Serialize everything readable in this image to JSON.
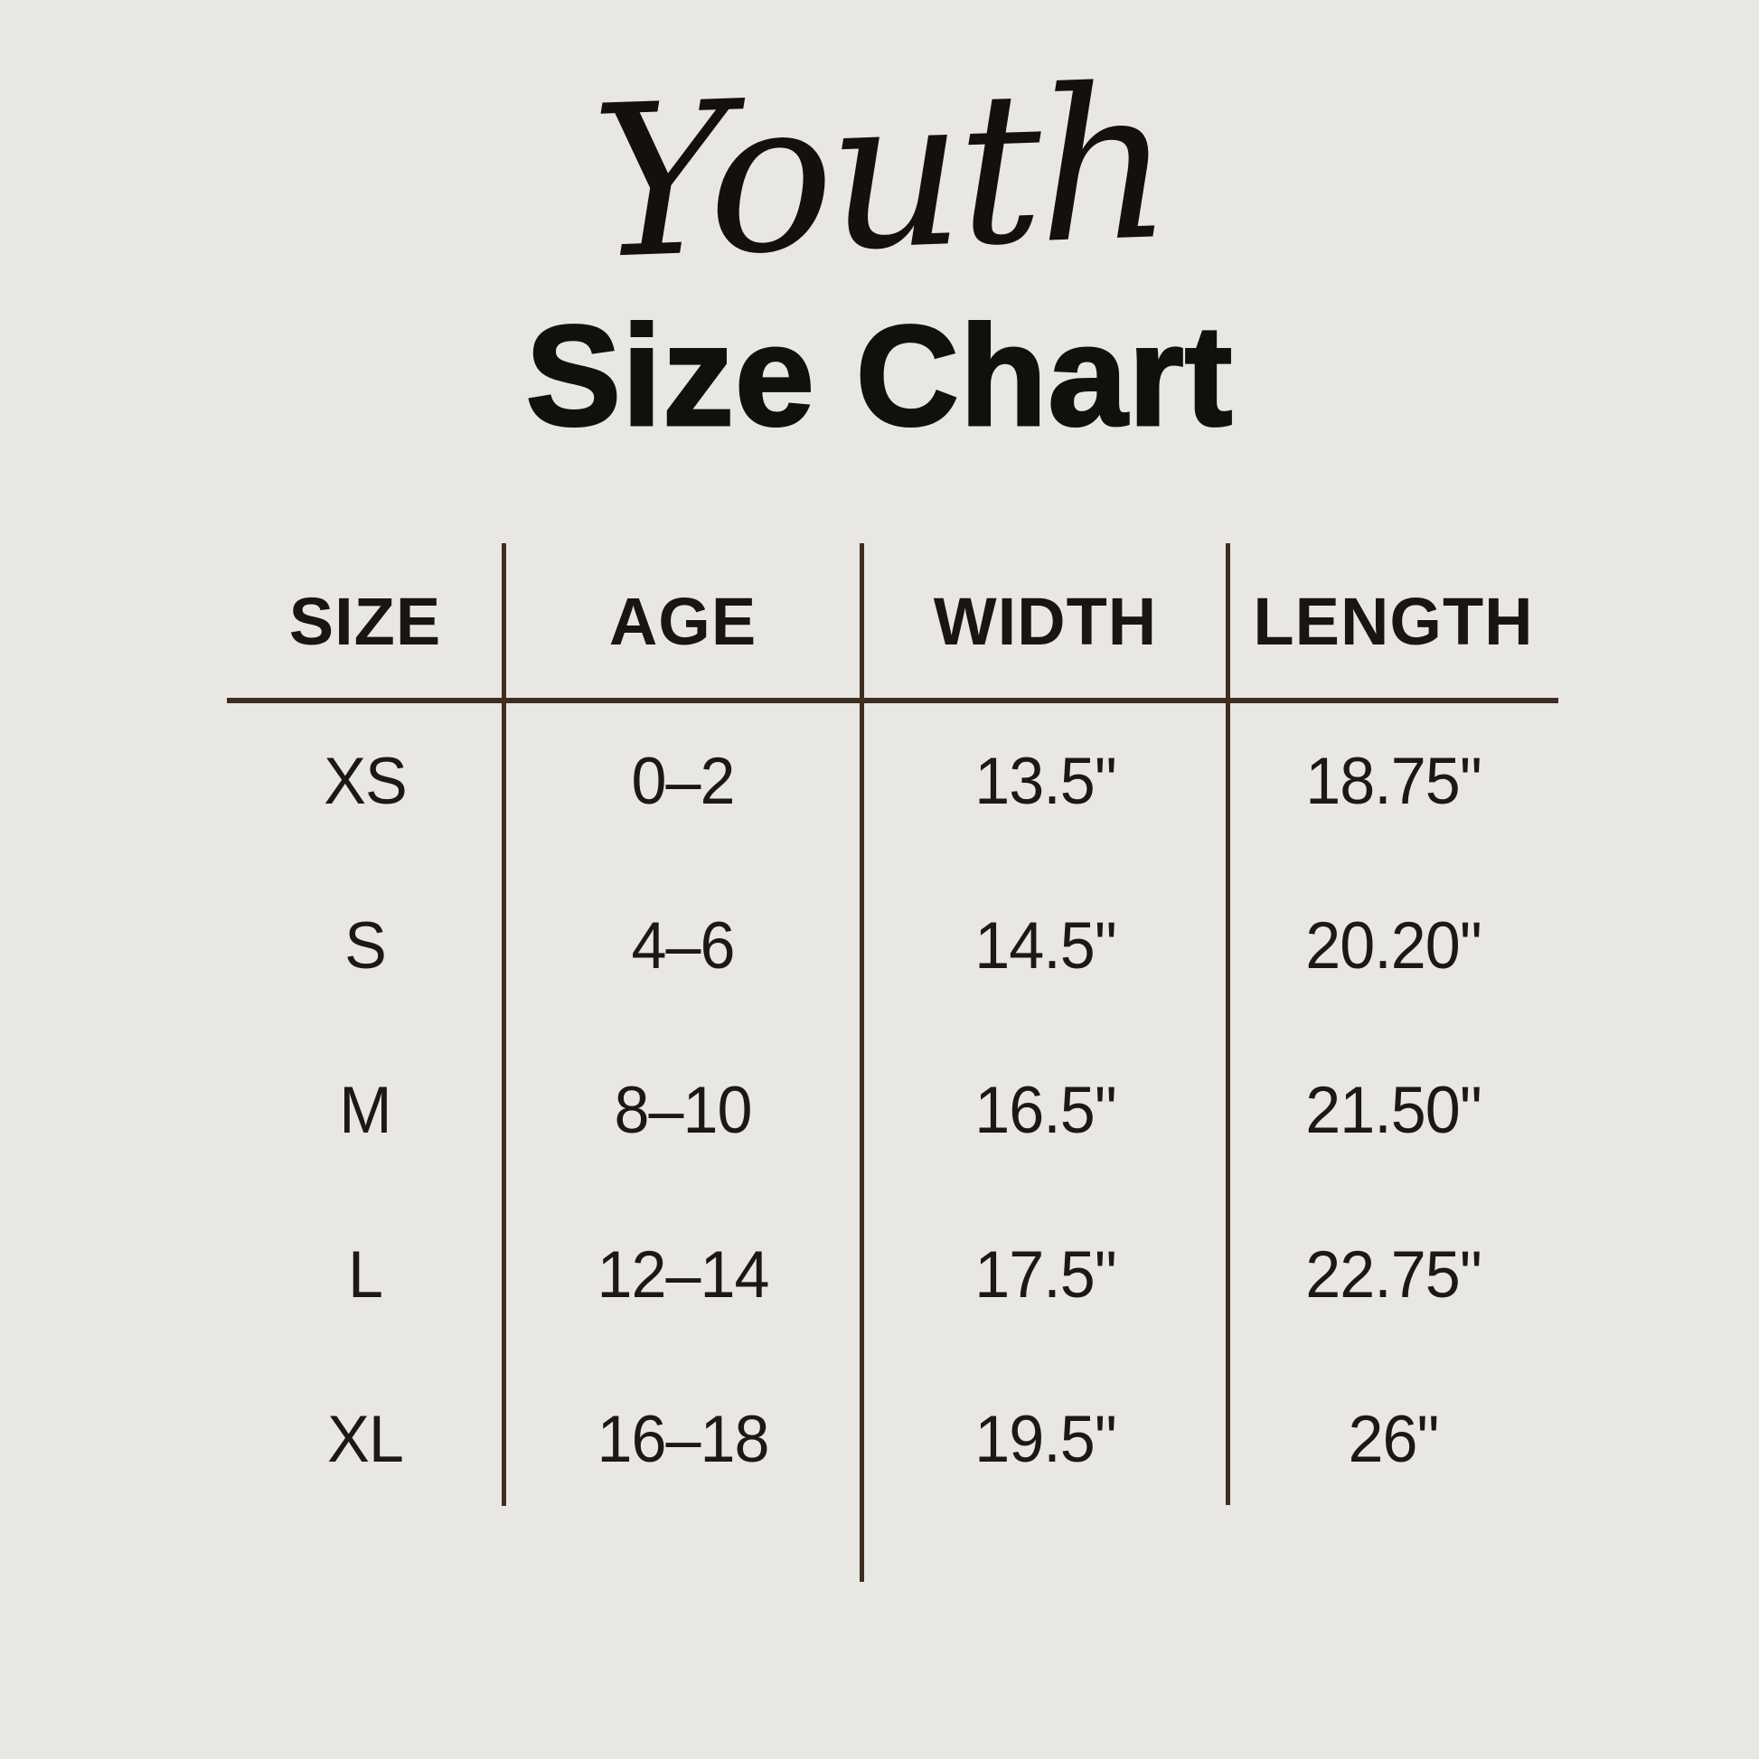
{
  "page": {
    "background_color": "#e9e7e3",
    "rule_color": "#3e2d21",
    "text_color": "#17140f"
  },
  "title": {
    "script": "Youth",
    "main": "Size Chart"
  },
  "chart_data": {
    "type": "table",
    "title": "Youth Size Chart",
    "columns": [
      "SIZE",
      "AGE",
      "WIDTH",
      "LENGTH"
    ],
    "rows": [
      [
        "XS",
        "0–2",
        "13.5\"",
        "18.75\""
      ],
      [
        "S",
        "4–6",
        "14.5\"",
        "20.20\""
      ],
      [
        "M",
        "8–10",
        "16.5\"",
        "21.50\""
      ],
      [
        "L",
        "12–14",
        "17.5\"",
        "22.75\""
      ],
      [
        "XL",
        "16–18",
        "19.5\"",
        "26\""
      ]
    ]
  }
}
